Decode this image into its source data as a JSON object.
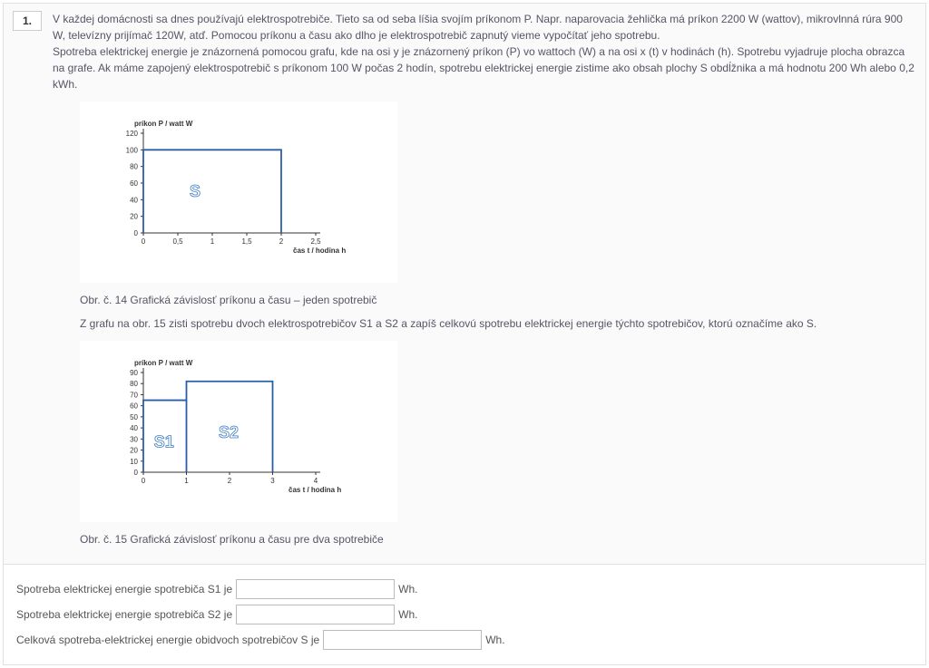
{
  "question_number": "1.",
  "question_text": "V každej domácnosti sa dnes používajú elektrospotrebiče. Tieto sa od seba líšia svojím príkonom P. Napr. naparovacia žehlička má príkon 2200 W (wattov), mikrovlnná rúra 900 W, televízny prijímač 120W, atď. Pomocou príkonu a času ako dlho je elektrospotrebič zapnutý vieme vypočítať jeho spotrebu.\nSpotreba elektrickej energie je znázornená pomocou grafu, kde na osi y je znázornený príkon (P) vo  wattoch (W) a na osi x (t) v hodinách (h). Spotrebu vyjadruje plocha obrazca na grafe. Ak máme zapojený elektrospotrebič s  príkonom 100 W počas 2 hodín, spotrebu elektrickej energie zistime ako obsah plochy S obdĺžnika a má hodnotu 200 Wh alebo 0,2 kWh.",
  "chart1": {
    "y_axis_label": "príkon P / watt W",
    "x_axis_label": "čas t / hodina h",
    "y_ticks": [
      0,
      20,
      40,
      60,
      80,
      100,
      120
    ],
    "x_ticks": [
      "0",
      "0,5",
      "1",
      "1,5",
      "2",
      "2,5"
    ],
    "rect_x_start": 0,
    "rect_x_end": 2,
    "rect_y": 100,
    "s_label": "S",
    "line_color": "#2a5fa8",
    "bg_color": "#ffffff",
    "axis_color": "#333333"
  },
  "caption1": "Obr. č. 14 Grafická závislosť príkonu a času – jeden spotrebič",
  "instruction1": "Z grafu na obr. 15 zisti spotrebu dvoch elektrospotrebičov S1 a  S2 a zapíš celkovú spotrebu elektrickej energie týchto spotrebičov, ktorú označíme ako S.",
  "chart2": {
    "y_axis_label": "príkon P / watt W",
    "x_axis_label": "čas t / hodina h",
    "y_ticks": [
      0,
      10,
      20,
      30,
      40,
      50,
      60,
      70,
      80,
      90
    ],
    "x_ticks": [
      "0",
      "1",
      "2",
      "3",
      "4"
    ],
    "rect1": {
      "x_start": 0,
      "x_end": 1,
      "y": 65,
      "label": "S1"
    },
    "rect2": {
      "x_start": 1,
      "x_end": 3,
      "y": 82,
      "label": "S2"
    },
    "line_color": "#2a5fa8",
    "bg_color": "#ffffff",
    "axis_color": "#333333"
  },
  "caption2": "Obr. č. 15 Grafická závislosť príkonu a času pre dva spotrebiče",
  "answers": {
    "row1_before": "Spotreba elektrickej energie spotrebiča S1 je",
    "row1_after": "Wh.",
    "row2_before": "Spotreba elektrickej energie spotrebiča S2 je",
    "row2_after": "Wh.",
    "row3_before": "Celková spotreba-elektrickej energie obidvoch spotrebičov S je",
    "row3_after": "Wh."
  }
}
